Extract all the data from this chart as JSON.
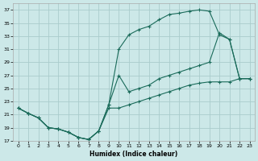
{
  "xlabel": "Humidex (Indice chaleur)",
  "bg_color": "#cce8e8",
  "grid_color": "#aacccc",
  "line_color": "#1a6b5a",
  "xlim": [
    -0.5,
    23.5
  ],
  "ylim": [
    17,
    38
  ],
  "yticks": [
    17,
    19,
    21,
    23,
    25,
    27,
    29,
    31,
    33,
    35,
    37
  ],
  "xticks": [
    0,
    1,
    2,
    3,
    4,
    5,
    6,
    7,
    8,
    9,
    10,
    11,
    12,
    13,
    14,
    15,
    16,
    17,
    18,
    19,
    20,
    21,
    22,
    23
  ],
  "upper_x": [
    0,
    1,
    2,
    3,
    4,
    5,
    6,
    7,
    8,
    9,
    10,
    11,
    12,
    13,
    14,
    15,
    16,
    17,
    18,
    19,
    20,
    21,
    22,
    23
  ],
  "upper_y": [
    22,
    21.2,
    20.5,
    19,
    18.8,
    18.3,
    17.5,
    17.2,
    18.5,
    22.5,
    31,
    33.2,
    34,
    34.5,
    35.5,
    36.3,
    36.5,
    36.8,
    37,
    36.8,
    33.2,
    32.5,
    26.5,
    26.5
  ],
  "mid_x": [
    0,
    1,
    2,
    3,
    4,
    5,
    6,
    7,
    8,
    9,
    10,
    11,
    12,
    13,
    14,
    15,
    16,
    17,
    18,
    19,
    20,
    21,
    22,
    23
  ],
  "mid_y": [
    22,
    21.2,
    20.5,
    19,
    18.8,
    18.3,
    17.5,
    17.2,
    18.5,
    22.5,
    27,
    24.5,
    25,
    25.5,
    26.5,
    27,
    27.5,
    28,
    28.5,
    29,
    33.5,
    32.5,
    26.5,
    26.5
  ],
  "lower_x": [
    0,
    1,
    2,
    3,
    4,
    5,
    6,
    7,
    8,
    9,
    10,
    11,
    12,
    13,
    14,
    15,
    16,
    17,
    18,
    19,
    20,
    21,
    22,
    23
  ],
  "lower_y": [
    22,
    21.2,
    20.5,
    19,
    18.8,
    18.3,
    17.5,
    17.2,
    18.5,
    22,
    22,
    22.5,
    23,
    23.5,
    24,
    24.5,
    25,
    25.5,
    25.8,
    26,
    26,
    26,
    26.5,
    26.5
  ]
}
